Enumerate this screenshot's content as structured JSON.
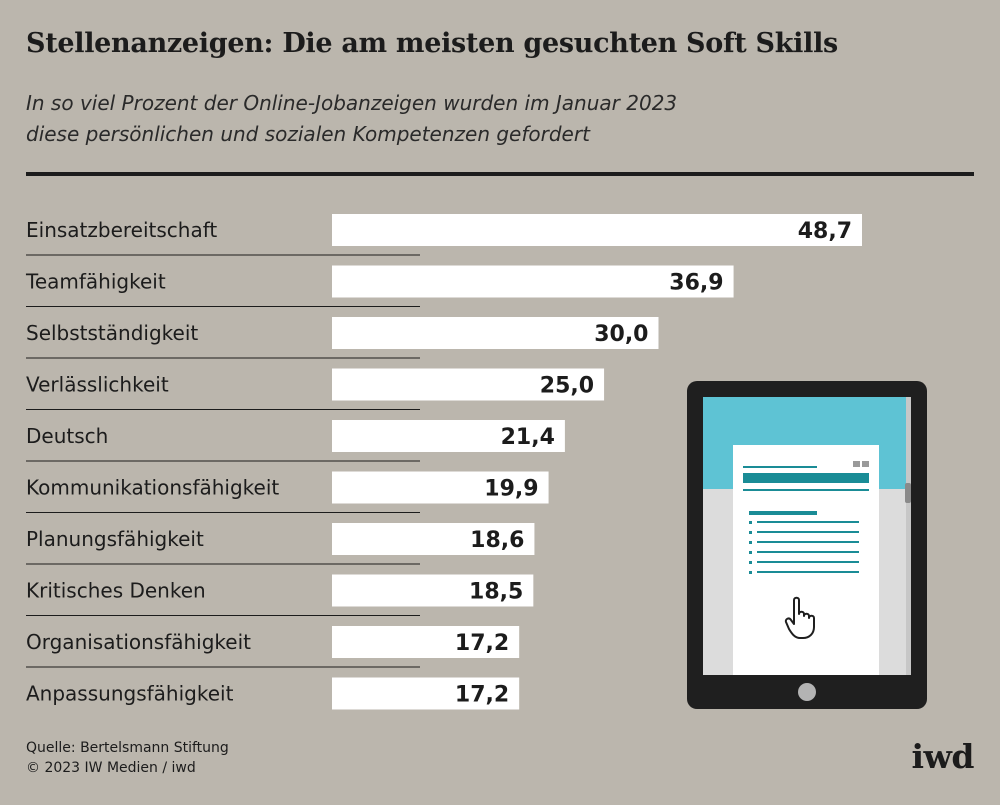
{
  "header": {
    "title": "Stellenanzeigen: Die am meisten gesuchten Soft Skills",
    "subtitle_line1": "In so viel Prozent der Online-Jobanzeigen wurden im Januar 2023",
    "subtitle_line2": "diese persönlichen und sozialen Kompetenzen gefordert"
  },
  "chart_data": {
    "type": "bar",
    "orientation": "horizontal",
    "title": "Stellenanzeigen: Die am meisten gesuchten Soft Skills",
    "subtitle": "In so viel Prozent der Online-Jobanzeigen wurden im Januar 2023 diese persönlichen und sozialen Kompetenzen gefordert",
    "categories": [
      "Einsatzbereitschaft",
      "Teamfähigkeit",
      "Selbstständigkeit",
      "Verlässlichkeit",
      "Deutsch",
      "Kommunikationsfähigkeit",
      "Planungsfähigkeit",
      "Kritisches Denken",
      "Organisationsfähigkeit",
      "Anpassungsfähigkeit"
    ],
    "values": [
      48.7,
      36.9,
      30.0,
      25.0,
      21.4,
      19.9,
      18.6,
      18.5,
      17.2,
      17.2
    ],
    "value_labels": [
      "48,7",
      "36,9",
      "30,0",
      "25,0",
      "21,4",
      "19,9",
      "18,6",
      "18,5",
      "17,2",
      "17,2"
    ],
    "xlim": [
      0,
      48.7
    ],
    "grid": false
  },
  "footer": {
    "source": "Quelle: Bertelsmann Stiftung",
    "copyright": "© 2023 IW Medien / iwd",
    "logo": "iwd"
  },
  "colors": {
    "background": "#bbb6ad",
    "bar": "#ffffff",
    "text": "#1c1c1c",
    "tablet_screen_accent": "#5ec3d4",
    "tablet_heading": "#1a8c96"
  },
  "icons": {
    "tablet": "tablet-icon",
    "pointer": "hand-pointer-icon"
  }
}
